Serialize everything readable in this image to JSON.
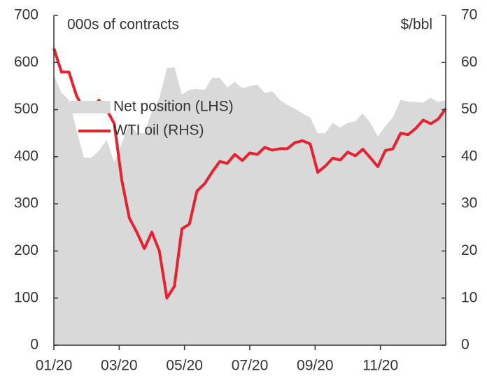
{
  "chart_data": {
    "type": "area_line",
    "ylabel": "000s of contracts",
    "y2label": "$/bbl",
    "x": [
      0,
      0.23,
      0.46,
      0.69,
      0.92,
      1.15,
      1.38,
      1.62,
      1.85,
      2.08,
      2.31,
      2.54,
      2.77,
      3.0,
      3.23,
      3.46,
      3.69,
      3.92,
      4.15,
      4.38,
      4.62,
      4.85,
      5.08,
      5.31,
      5.54,
      5.77,
      6.0,
      6.23,
      6.46,
      6.69,
      6.92,
      7.15,
      7.38,
      7.62,
      7.85,
      8.08,
      8.31,
      8.54,
      8.77,
      9.0,
      9.23,
      9.46,
      9.69,
      9.92,
      10.15,
      10.38,
      10.62,
      10.85,
      11.08,
      11.31,
      11.54,
      11.77,
      12.0
    ],
    "xlim": [
      0,
      12
    ],
    "xticks": [
      {
        "value": 0,
        "label": "01/20"
      },
      {
        "value": 2,
        "label": "03/20"
      },
      {
        "value": 4,
        "label": "05/20"
      },
      {
        "value": 6,
        "label": "07/20"
      },
      {
        "value": 8,
        "label": "09/20"
      },
      {
        "value": 10,
        "label": "11/20"
      }
    ],
    "ylim": [
      0,
      700
    ],
    "yticks": [
      0,
      100,
      200,
      300,
      400,
      500,
      600,
      700
    ],
    "y2lim": [
      0,
      70
    ],
    "y2ticks": [
      0,
      10,
      20,
      30,
      40,
      50,
      60,
      70
    ],
    "series": [
      {
        "name": "Net position (LHS)",
        "color": "#d9d9d9",
        "kind": "area",
        "values": [
          573,
          536,
          521,
          458,
          398,
          398,
          413,
          435,
          388,
          428,
          472,
          450,
          450,
          495,
          524,
          588,
          590,
          532,
          542,
          544,
          542,
          568,
          568,
          547,
          559,
          545,
          550,
          553,
          535,
          539,
          521,
          510,
          502,
          492,
          483,
          450,
          450,
          472,
          462,
          472,
          475,
          492,
          472,
          443,
          465,
          483,
          521,
          517,
          516,
          515,
          525,
          516,
          520
        ]
      },
      {
        "name": "WTI oil (RHS)",
        "color": "#e8202f",
        "kind": "line",
        "axis": "y2",
        "values": [
          63,
          58,
          58,
          53,
          50,
          50,
          52,
          50,
          47,
          35,
          27,
          24,
          20.5,
          24,
          20,
          10,
          12.5,
          24.7,
          25.7,
          32.7,
          34.3,
          36.8,
          39,
          38.6,
          40.5,
          39.2,
          40.8,
          40.5,
          42,
          41.4,
          41.7,
          41.7,
          43,
          43.4,
          42.7,
          36.7,
          38,
          39.7,
          39.3,
          41,
          40.2,
          41.6,
          39.8,
          37.9,
          41.3,
          41.7,
          45,
          44.7,
          46,
          47.8,
          47,
          48,
          50.2
        ]
      }
    ]
  }
}
